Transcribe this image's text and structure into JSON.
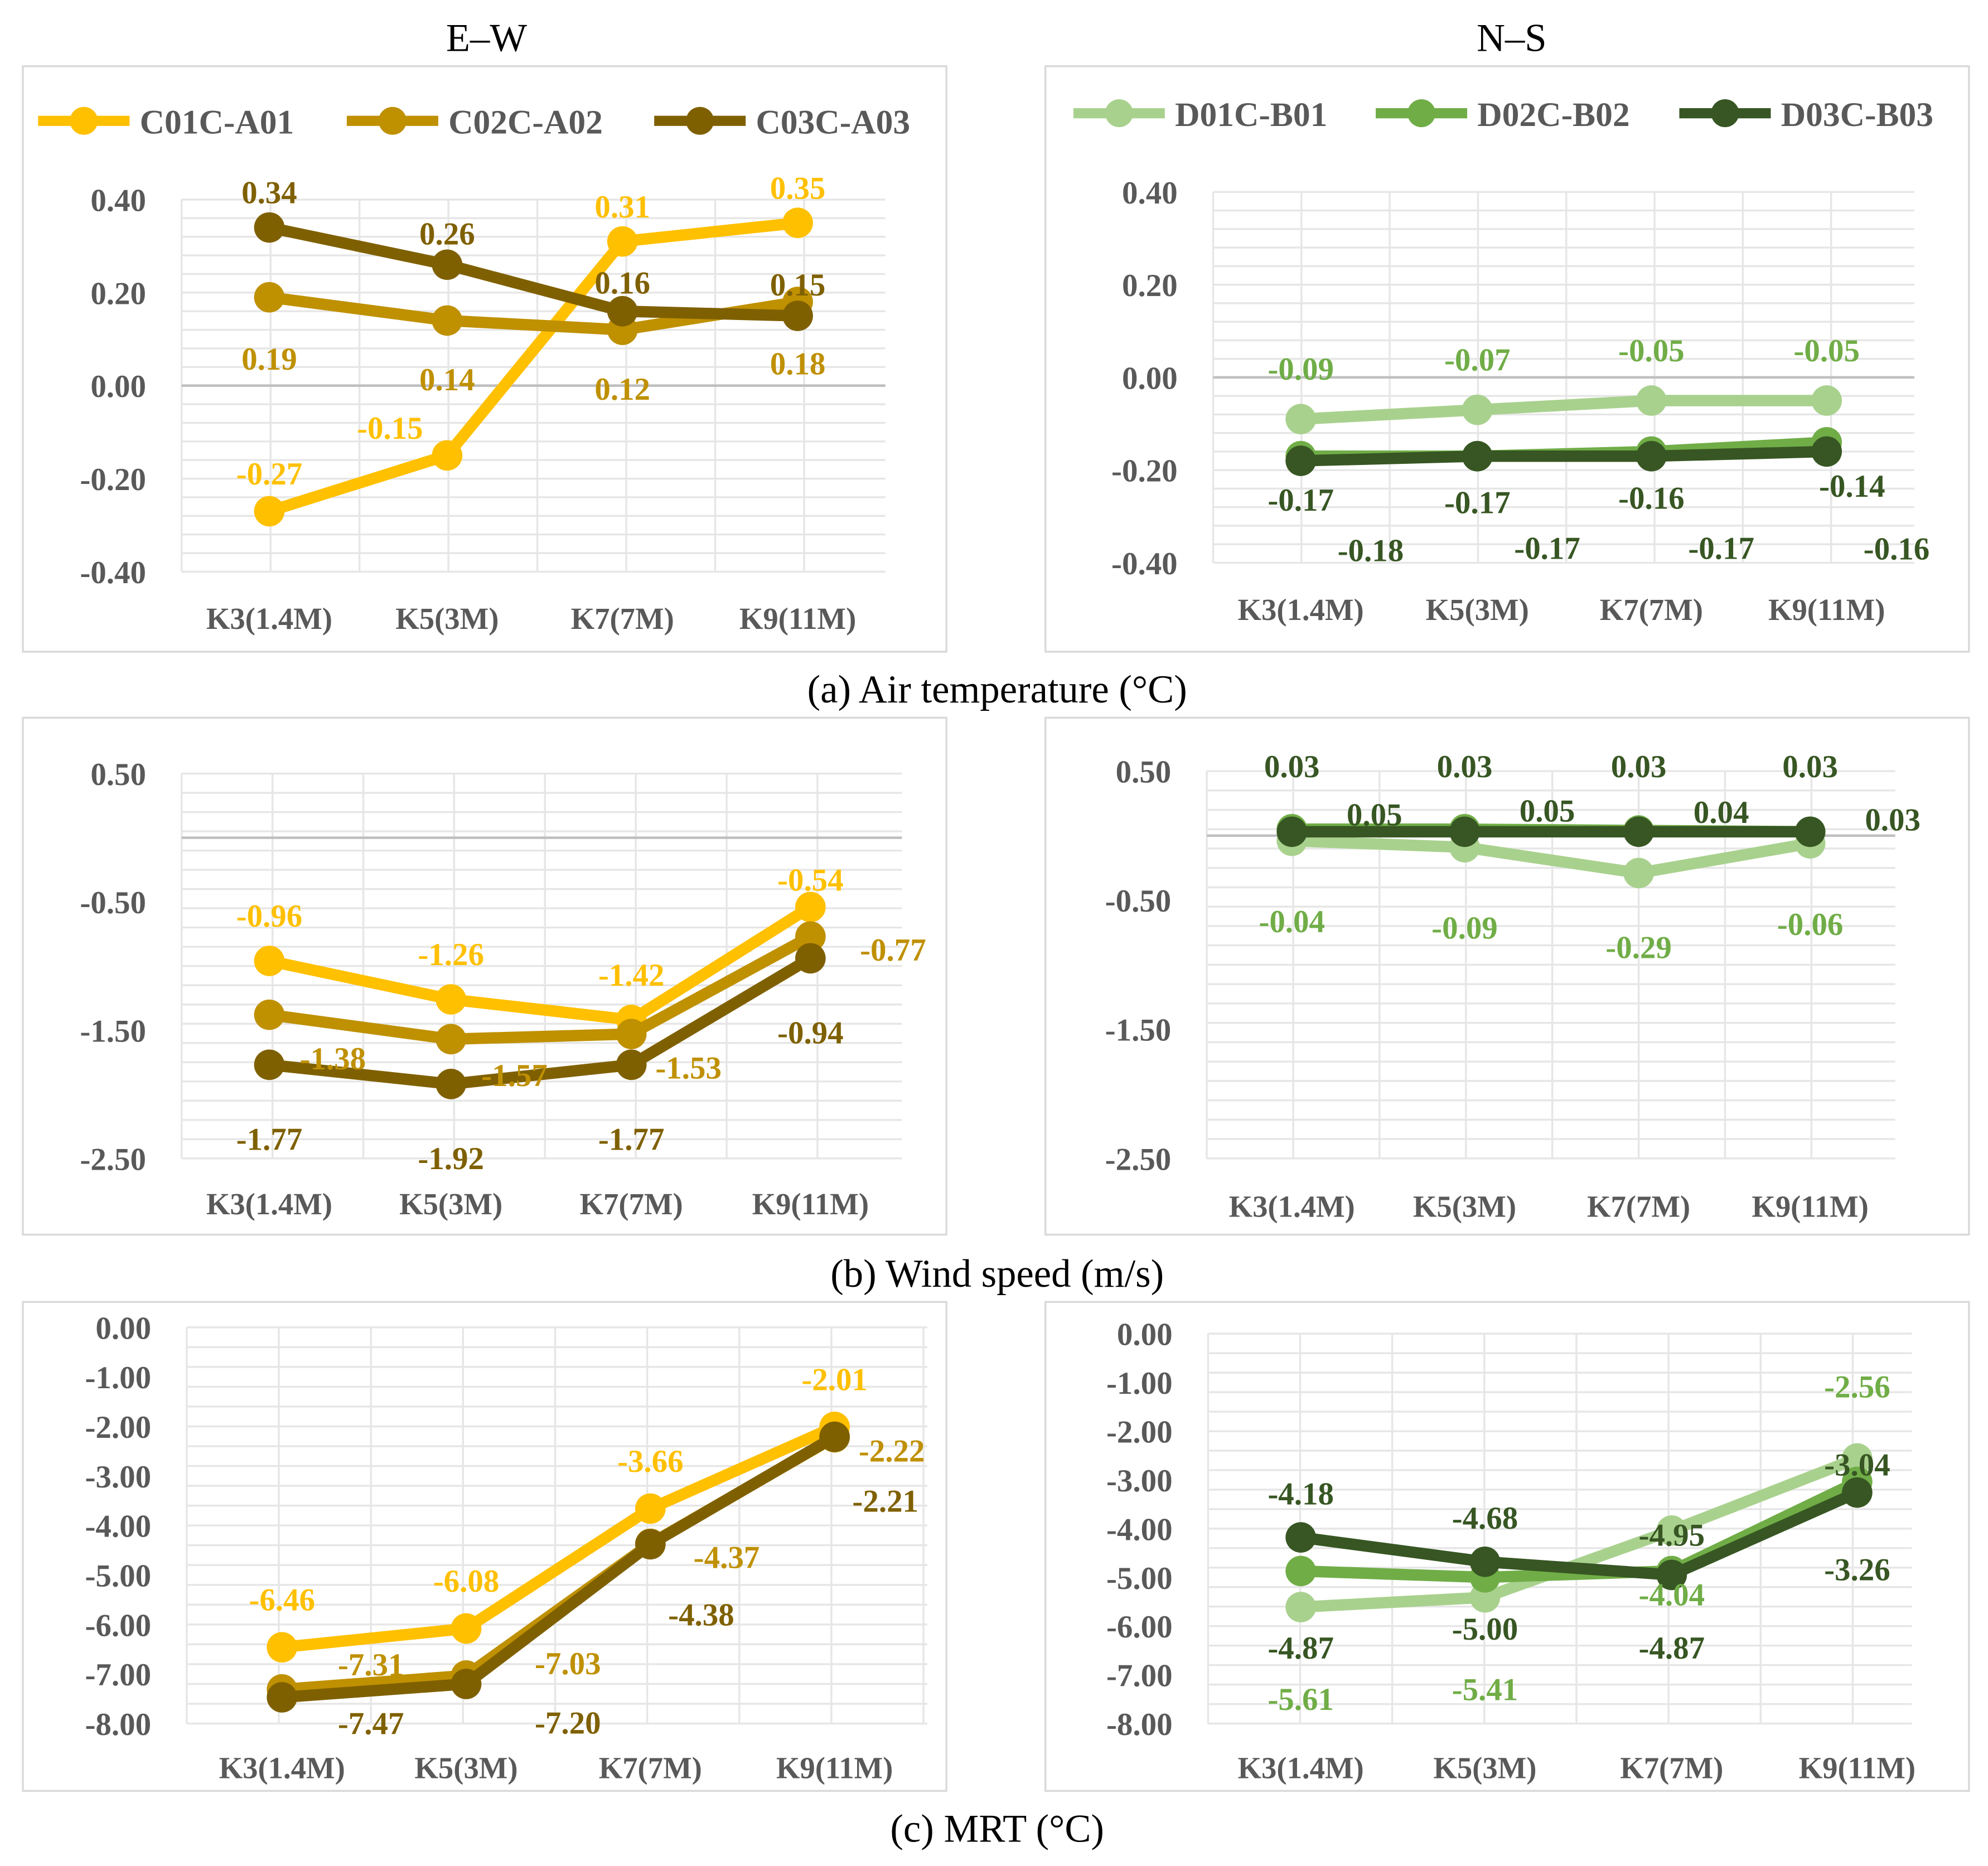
{
  "headings": {
    "left": "E–W",
    "right": "N–S"
  },
  "captions": [
    "(a) Air temperature (°C)",
    "(b) Wind speed (m/s)",
    "(c) MRT (°C)"
  ],
  "colors": {
    "C01C-A01": "#FFC000",
    "C02C-A02": "#BF9000",
    "C03C-A03": "#7F6000",
    "D01C-B01": "#A9D18E",
    "D02C-B02": "#70AD47",
    "D03C-B03": "#375623"
  },
  "chart_data": [
    {
      "type": "line",
      "id": "air-ew",
      "title": "Air temperature E–W",
      "categories": [
        "K3(1.4M)",
        "K5(3M)",
        "K7(7M)",
        "K9(11M)"
      ],
      "ylim": [
        -0.4,
        0.4
      ],
      "yticks": [
        "0.40",
        "0.20",
        "0.00",
        "-0.20",
        "-0.40"
      ],
      "ytick_values": [
        0.4,
        0.2,
        0,
        -0.2,
        -0.4
      ],
      "legend": "top",
      "grid": true,
      "series": [
        {
          "name": "C01C-A01",
          "values": [
            -0.27,
            -0.15,
            0.31,
            0.35
          ],
          "labels": [
            "-0.27",
            "-0.15",
            "0.31",
            "0.35"
          ]
        },
        {
          "name": "C02C-A02",
          "values": [
            0.19,
            0.14,
            0.12,
            0.18
          ],
          "labels": [
            "0.19",
            "0.14",
            "0.12",
            "0.18"
          ]
        },
        {
          "name": "C03C-A03",
          "values": [
            0.34,
            0.26,
            0.16,
            0.15
          ],
          "labels": [
            "0.34",
            "0.26",
            "0.16",
            "0.15"
          ]
        }
      ]
    },
    {
      "type": "line",
      "id": "air-ns",
      "title": "Air temperature N–S",
      "categories": [
        "K3(1.4M)",
        "K5(3M)",
        "K7(7M)",
        "K9(11M)"
      ],
      "ylim": [
        -0.4,
        0.4
      ],
      "yticks": [
        "0.40",
        "0.20",
        "0.00",
        "-0.20",
        "-0.40"
      ],
      "ytick_values": [
        0.4,
        0.2,
        0,
        -0.2,
        -0.4
      ],
      "legend": "top",
      "grid": true,
      "series": [
        {
          "name": "D01C-B01",
          "values": [
            -0.09,
            -0.07,
            -0.05,
            -0.05
          ],
          "labels": [
            "-0.09",
            "-0.07",
            "-0.05",
            "-0.05"
          ]
        },
        {
          "name": "D02C-B02",
          "values": [
            -0.17,
            -0.17,
            -0.16,
            -0.14
          ],
          "labels": [
            "-0.17",
            "-0.17",
            "-0.16",
            "-0.14"
          ]
        },
        {
          "name": "D03C-B03",
          "values": [
            -0.18,
            -0.17,
            -0.17,
            -0.16
          ],
          "labels": [
            "-0.18",
            "-0.17",
            "-0.17",
            "-0.16"
          ]
        }
      ]
    },
    {
      "type": "line",
      "id": "wind-ew",
      "title": "Wind speed E–W",
      "categories": [
        "K3(1.4M)",
        "K5(3M)",
        "K7(7M)",
        "K9(11M)"
      ],
      "ylim": [
        -2.5,
        0.5
      ],
      "yticks": [
        "0.50",
        "-0.50",
        "-1.50",
        "-2.50"
      ],
      "ytick_values": [
        0.5,
        -0.5,
        -1.5,
        -2.5
      ],
      "grid": true,
      "series": [
        {
          "name": "C01C-A01",
          "values": [
            -0.96,
            -1.26,
            -1.42,
            -0.54
          ],
          "labels": [
            "-0.96",
            "-1.26",
            "-1.42",
            "-0.54"
          ]
        },
        {
          "name": "C02C-A02",
          "values": [
            -1.38,
            -1.57,
            -1.53,
            -0.77
          ],
          "labels": [
            "-1.38",
            "-1.57",
            "-1.53",
            "-0.77"
          ]
        },
        {
          "name": "C03C-A03",
          "values": [
            -1.77,
            -1.92,
            -1.77,
            -0.94
          ],
          "labels": [
            "-1.77",
            "-1.92",
            "-1.77",
            "-0.94"
          ]
        }
      ]
    },
    {
      "type": "line",
      "id": "wind-ns",
      "title": "Wind speed N–S",
      "categories": [
        "K3(1.4M)",
        "K5(3M)",
        "K7(7M)",
        "K9(11M)"
      ],
      "ylim": [
        -2.5,
        0.5
      ],
      "yticks": [
        "0.50",
        "-0.50",
        "-1.50",
        "-2.50"
      ],
      "ytick_values": [
        0.5,
        -0.5,
        -1.5,
        -2.5
      ],
      "grid": true,
      "series": [
        {
          "name": "D01C-B01",
          "values": [
            -0.04,
            -0.09,
            -0.29,
            -0.06
          ],
          "labels": [
            "-0.04",
            "-0.09",
            "-0.29",
            "-0.06"
          ]
        },
        {
          "name": "D02C-B02",
          "values": [
            0.05,
            0.05,
            0.04,
            0.03
          ],
          "labels": [
            "0.05",
            "0.05",
            "0.04",
            "0.03"
          ]
        },
        {
          "name": "D03C-B03",
          "values": [
            0.03,
            0.03,
            0.03,
            0.03
          ],
          "labels": [
            "0.03",
            "0.03",
            "0.03",
            "0.03"
          ]
        }
      ]
    },
    {
      "type": "line",
      "id": "mrt-ew",
      "title": "MRT E–W",
      "categories": [
        "K3(1.4M)",
        "K5(3M)",
        "K7(7M)",
        "K9(11M)"
      ],
      "ylim": [
        -8.0,
        0.0
      ],
      "yticks": [
        "0.00",
        "-1.00",
        "-2.00",
        "-3.00",
        "-4.00",
        "-5.00",
        "-6.00",
        "-7.00",
        "-8.00"
      ],
      "ytick_values": [
        0,
        -1,
        -2,
        -3,
        -4,
        -5,
        -6,
        -7,
        -8
      ],
      "grid": true,
      "series": [
        {
          "name": "C01C-A01",
          "values": [
            -6.46,
            -6.08,
            -3.66,
            -2.01
          ],
          "labels": [
            "-6.46",
            "-6.08",
            "-3.66",
            "-2.01"
          ]
        },
        {
          "name": "C02C-A02",
          "values": [
            -7.31,
            -7.03,
            -4.37,
            -2.22
          ],
          "labels": [
            "-7.31",
            "-7.03",
            "-4.37",
            "-2.22"
          ]
        },
        {
          "name": "C03C-A03",
          "values": [
            -7.47,
            -7.2,
            -4.38,
            -2.21
          ],
          "labels": [
            "-7.47",
            "-7.20",
            "-4.38",
            "-2.21"
          ]
        }
      ]
    },
    {
      "type": "line",
      "id": "mrt-ns",
      "title": "MRT N–S",
      "categories": [
        "K3(1.4M)",
        "K5(3M)",
        "K7(7M)",
        "K9(11M)"
      ],
      "ylim": [
        -8.0,
        0.0
      ],
      "yticks": [
        "0.00",
        "-1.00",
        "-2.00",
        "-3.00",
        "-4.00",
        "-5.00",
        "-6.00",
        "-7.00",
        "-8.00"
      ],
      "ytick_values": [
        0,
        -1,
        -2,
        -3,
        -4,
        -5,
        -6,
        -7,
        -8
      ],
      "grid": true,
      "series": [
        {
          "name": "D01C-B01",
          "values": [
            -5.61,
            -5.41,
            -4.04,
            -2.56
          ],
          "labels": [
            "-5.61",
            "-5.41",
            "-4.04",
            "-2.56"
          ]
        },
        {
          "name": "D02C-B02",
          "values": [
            -4.87,
            -5.0,
            -4.87,
            -3.04
          ],
          "labels": [
            "-4.87",
            "-5.00",
            "-4.87",
            "-3.04"
          ]
        },
        {
          "name": "D03C-B03",
          "values": [
            -4.18,
            -4.68,
            -4.95,
            -3.26
          ],
          "labels": [
            "-4.18",
            "-4.68",
            "-4.95",
            "-3.26"
          ]
        }
      ]
    }
  ]
}
